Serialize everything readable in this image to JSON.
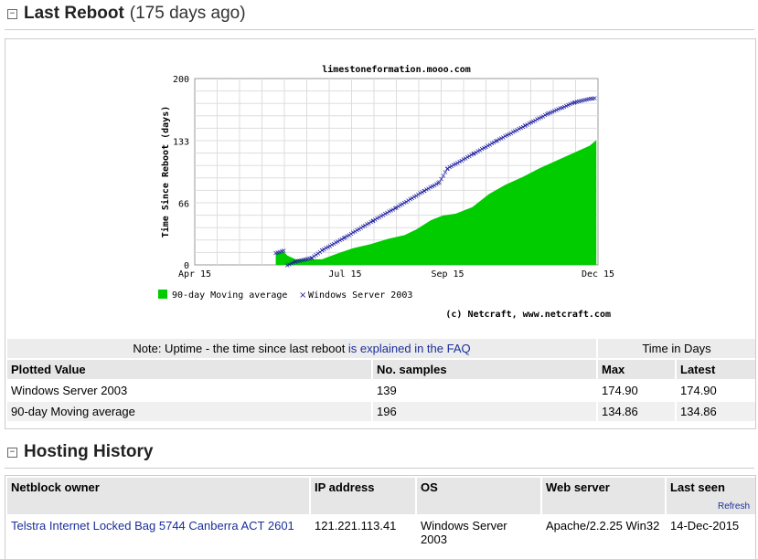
{
  "reboot": {
    "title": "Last Reboot",
    "subtitle": "(175 days ago)",
    "toggle": "−"
  },
  "chart_data": {
    "type": "area",
    "title": "limestoneformation.mooo.com",
    "ylabel": "Time Since Reboot (days)",
    "xlabel": "",
    "ylim": [
      0,
      200
    ],
    "yticks": [
      "0",
      "66",
      "133",
      "200"
    ],
    "xticks": [
      "Apr 15",
      "Jul 15",
      "Sep 15",
      "Dec 15"
    ],
    "credit": "(c) Netcraft, www.netcraft.com",
    "series": [
      {
        "name": "90-day Moving average",
        "color": "#00cc00",
        "x": [
          "Jun 3",
          "Jun 8",
          "Jun 10",
          "Jun 15",
          "Jun 25",
          "Jul 1",
          "Jul 10",
          "Jul 20",
          "Jul 30",
          "Aug 10",
          "Aug 20",
          "Aug 27",
          "Sep 5",
          "Sep 12",
          "Sep 20",
          "Sep 30",
          "Oct 10",
          "Oct 20",
          "Oct 30",
          "Nov 10",
          "Nov 20",
          "Nov 30",
          "Dec 10",
          "Dec 14"
        ],
        "y": [
          12,
          14,
          10,
          6,
          6,
          6,
          12,
          18,
          22,
          28,
          32,
          38,
          48,
          53,
          55,
          62,
          76,
          86,
          94,
          104,
          112,
          120,
          128,
          134
        ]
      },
      {
        "name": "Windows Server 2003",
        "color": "#1a1aa0",
        "x": [
          "Jun 3",
          "Jun 8",
          "Jun 10",
          "Jun 15",
          "Jun 25",
          "Jul 1",
          "Jul 15",
          "Aug 1",
          "Aug 15",
          "Sep 1",
          "Sep 10",
          "Sep 15",
          "Oct 1",
          "Oct 15",
          "Nov 1",
          "Nov 15",
          "Dec 1",
          "Dec 14"
        ],
        "y": [
          13,
          16,
          0,
          4,
          8,
          16,
          30,
          48,
          62,
          80,
          89,
          104,
          120,
          134,
          150,
          163,
          175,
          180
        ]
      }
    ]
  },
  "uptime_table": {
    "note_prefix": "Note: Uptime - the time since last reboot ",
    "note_link": "is explained in the FAQ",
    "time_in_days": "Time in Days",
    "headers": [
      "Plotted Value",
      "No. samples",
      "Max",
      "Latest"
    ],
    "rows": [
      [
        "Windows Server 2003",
        "139",
        "174.90",
        "174.90"
      ],
      [
        "90-day Moving average",
        "196",
        "134.86",
        "134.86"
      ]
    ]
  },
  "hosting": {
    "title": "Hosting History",
    "toggle": "−",
    "headers": [
      "Netblock owner",
      "IP address",
      "OS",
      "Web server",
      "Last seen"
    ],
    "refresh": "Refresh",
    "rows": [
      {
        "owner": "Telstra Internet Locked Bag 5744 Canberra ACT 2601",
        "ip": "121.221.113.41",
        "os": "Windows Server 2003",
        "server": "Apache/2.2.25 Win32",
        "last_seen": "14-Dec-2015"
      }
    ]
  }
}
